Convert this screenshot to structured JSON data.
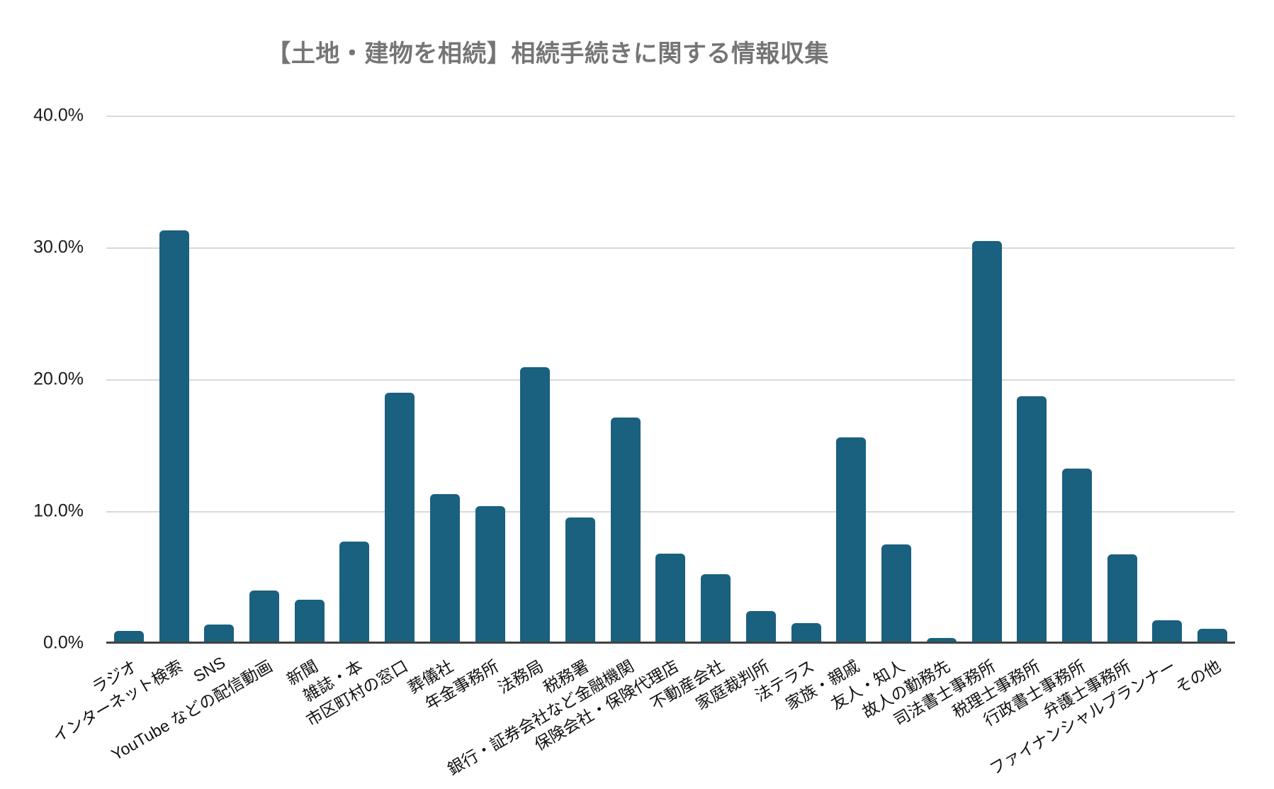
{
  "title": "【土地・建物を相続】相続手続きに関する情報収集",
  "colors": {
    "bar": "#1a607f",
    "title": "#757575",
    "gridline": "#d9d9d9",
    "axis": "#424242"
  },
  "chart_data": {
    "type": "bar",
    "title": "【土地・建物を相続】相続手続きに関する情報収集",
    "unit": "%",
    "categories": [
      "ラジオ",
      "インターネット検索",
      "SNS",
      "YouTube などの配信動画",
      "新聞",
      "雑誌・本",
      "市区町村の窓口",
      "葬儀社",
      "年金事務所",
      "法務局",
      "税務署",
      "銀行・証券会社など金融機関",
      "保険会社・保険代理店",
      "不動産会社",
      "家庭裁判所",
      "法テラス",
      "家族・親戚",
      "友人・知人",
      "故人の勤務先",
      "司法書士事務所",
      "税理士事務所",
      "行政書士事務所",
      "弁護士事務所",
      "ファイナンシャルプランナー",
      "その他"
    ],
    "values": [
      0.9,
      31.3,
      1.4,
      4.0,
      3.3,
      7.7,
      19.0,
      11.3,
      10.4,
      20.9,
      9.5,
      17.1,
      6.8,
      5.2,
      2.4,
      1.5,
      15.6,
      7.5,
      0.4,
      30.5,
      18.7,
      13.2,
      6.7,
      1.7,
      1.1
    ],
    "xlabel": "",
    "ylabel": "",
    "ylim": [
      0,
      40
    ],
    "yticks": [
      "0.0%",
      "10.0%",
      "20.0%",
      "30.0%",
      "40.0%"
    ],
    "grid": true,
    "legend": "none",
    "bar_color": "#1a607f"
  }
}
